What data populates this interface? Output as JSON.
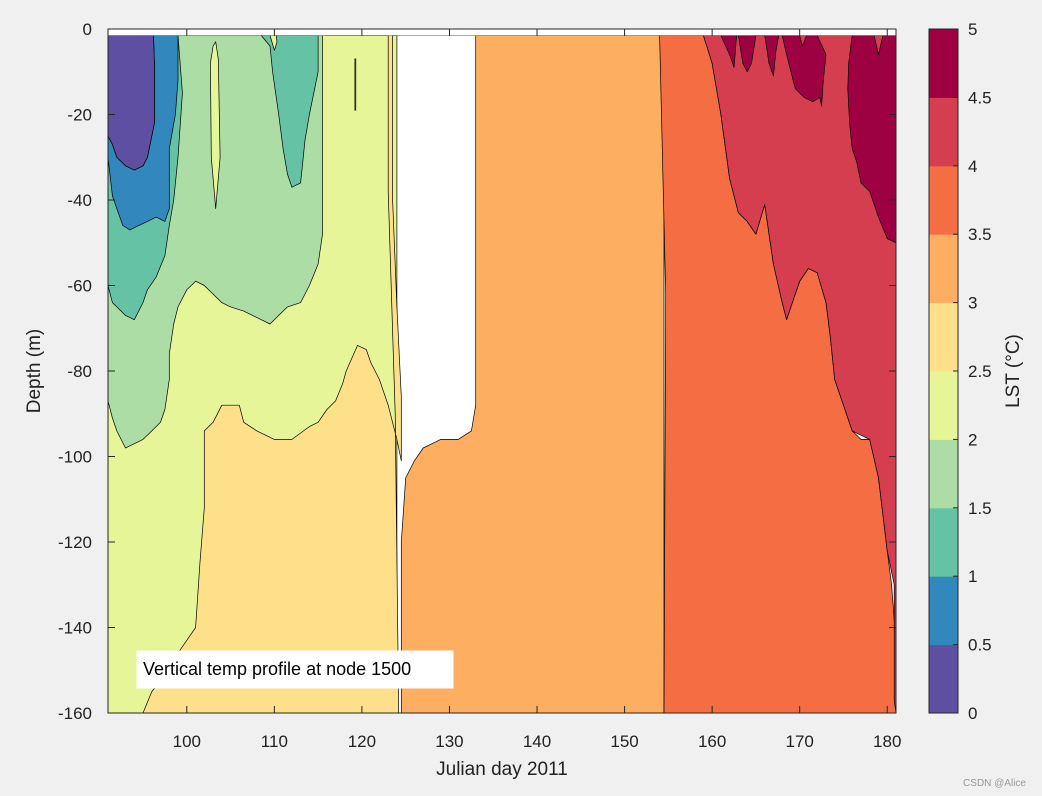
{
  "chart_data": {
    "type": "contourf",
    "title": "",
    "annotation": "Vertical temp profile at node 1500",
    "xlabel": "Julian day 2011",
    "ylabel": "Depth (m)",
    "xlim": [
      91,
      181
    ],
    "ylim": [
      -160,
      0
    ],
    "xticks": [
      100,
      110,
      120,
      130,
      140,
      150,
      160,
      170,
      180
    ],
    "yticks": [
      0,
      -20,
      -40,
      -60,
      -80,
      -100,
      -120,
      -140,
      -160
    ],
    "colorbar": {
      "label": "LST (°C)",
      "levels": [
        0,
        0.5,
        1,
        1.5,
        2,
        2.5,
        3,
        3.5,
        4,
        4.5,
        5
      ],
      "ticks": [
        "0",
        "0.5",
        "1",
        "1.5",
        "2",
        "2.5",
        "3",
        "3.5",
        "4",
        "4.5",
        "5"
      ],
      "colors": [
        "#5e4fa2",
        "#3288bd",
        "#66c2a5",
        "#abdda4",
        "#e6f598",
        "#fee08b",
        "#fdae61",
        "#f46d43",
        "#d53e4f",
        "#9e0142"
      ]
    },
    "surface_gap_depth": -1.5,
    "regions": [
      {
        "level": "2 to 2.5",
        "pts": [
          [
            91,
            -1.5
          ],
          [
            124,
            -1.5
          ],
          [
            124,
            -160
          ],
          [
            91,
            -160
          ]
        ]
      },
      {
        "level": "2.5 to 3",
        "pts": [
          [
            115.8,
            -1.5
          ],
          [
            123,
            -1.5
          ],
          [
            123,
            -38
          ],
          [
            123.8,
            -90
          ],
          [
            124.2,
            -160
          ],
          [
            95,
            -160
          ],
          [
            96,
            -155
          ],
          [
            98,
            -150
          ],
          [
            99,
            -146
          ],
          [
            100,
            -143
          ],
          [
            101,
            -140
          ],
          [
            101.5,
            -125
          ],
          [
            102,
            -112
          ],
          [
            102,
            -94
          ],
          [
            103,
            -92
          ],
          [
            104,
            -88
          ],
          [
            106,
            -88
          ],
          [
            106.5,
            -92
          ],
          [
            108,
            -94
          ],
          [
            110,
            -96
          ],
          [
            112,
            -96
          ],
          [
            114,
            -93
          ],
          [
            115,
            -92
          ],
          [
            116,
            -89
          ],
          [
            117,
            -87
          ],
          [
            117.8,
            -83
          ],
          [
            118.2,
            -80
          ],
          [
            119.5,
            -74
          ],
          [
            120.5,
            -75
          ],
          [
            121,
            -78
          ],
          [
            122,
            -82
          ],
          [
            123,
            -88
          ],
          [
            124,
            -96
          ],
          [
            124.5,
            -101
          ],
          [
            124.5,
            -86
          ],
          [
            124,
            -65
          ],
          [
            123.5,
            -40
          ],
          [
            123.5,
            -1.5
          ]
        ]
      },
      {
        "level": "3 to 3.5",
        "pts": [
          [
            123.5,
            -1.5
          ],
          [
            133,
            -1.5
          ],
          [
            133,
            -35
          ],
          [
            133,
            -88
          ],
          [
            132.5,
            -94
          ],
          [
            131,
            -96
          ],
          [
            129,
            -96
          ],
          [
            128,
            -97
          ],
          [
            127,
            -98
          ],
          [
            126,
            -101
          ],
          [
            125,
            -105
          ],
          [
            124.5,
            -120
          ],
          [
            124.5,
            -160
          ],
          [
            154.5,
            -160
          ],
          [
            154.5,
            -1.5
          ]
        ]
      },
      {
        "level": "3.5 to 4",
        "pts": [
          [
            154,
            -1.5
          ],
          [
            159,
            -1.5
          ],
          [
            160,
            -8
          ],
          [
            161,
            -20
          ],
          [
            162,
            -35
          ],
          [
            163,
            -43
          ],
          [
            164,
            -45
          ],
          [
            165,
            -48
          ],
          [
            166,
            -41
          ],
          [
            167,
            -55
          ],
          [
            168,
            -64
          ],
          [
            168.5,
            -68
          ],
          [
            169,
            -65
          ],
          [
            170,
            -59
          ],
          [
            171,
            -56
          ],
          [
            172,
            -57
          ],
          [
            173,
            -64
          ],
          [
            173.5,
            -72
          ],
          [
            174,
            -82
          ],
          [
            175,
            -88
          ],
          [
            176,
            -94
          ],
          [
            177,
            -96
          ],
          [
            178,
            -96
          ],
          [
            179,
            -105
          ],
          [
            180,
            -122
          ],
          [
            180.5,
            -130
          ],
          [
            181,
            -144
          ],
          [
            181,
            -160
          ],
          [
            154.5,
            -160
          ],
          [
            154.7,
            -62
          ],
          [
            154,
            -1.5
          ]
        ]
      },
      {
        "level": "4 to 4.5",
        "pts": [
          [
            159,
            -1.5
          ],
          [
            181,
            -1.5
          ],
          [
            181,
            -160
          ],
          [
            180.8,
            -157
          ],
          [
            180.8,
            -130
          ],
          [
            180,
            -122
          ],
          [
            179,
            -105
          ],
          [
            178,
            -96
          ],
          [
            176,
            -94
          ],
          [
            175,
            -88
          ],
          [
            174,
            -82
          ],
          [
            173.5,
            -72
          ],
          [
            173,
            -64
          ],
          [
            172,
            -57
          ],
          [
            171,
            -56
          ],
          [
            170,
            -59
          ],
          [
            169,
            -65
          ],
          [
            168.5,
            -68
          ],
          [
            168,
            -64
          ],
          [
            167,
            -55
          ],
          [
            166,
            -41
          ],
          [
            165,
            -48
          ],
          [
            164,
            -45
          ],
          [
            163,
            -43
          ],
          [
            162,
            -35
          ],
          [
            161,
            -20
          ],
          [
            160,
            -8
          ]
        ]
      },
      {
        "level": "4.5 to 5 (A)",
        "pts": [
          [
            161,
            -1.5
          ],
          [
            163,
            -1.5
          ],
          [
            163.5,
            -8
          ],
          [
            164,
            -10
          ],
          [
            164.5,
            -8
          ],
          [
            165,
            -1.5
          ],
          [
            166,
            -1.5
          ],
          [
            166.5,
            -8
          ],
          [
            167,
            -11
          ],
          [
            167.3,
            -5
          ],
          [
            167.6,
            -1.5
          ],
          [
            161,
            -1.5
          ],
          [
            162,
            -6
          ],
          [
            162.5,
            -9
          ],
          [
            162.8,
            -1.5
          ]
        ]
      },
      {
        "level": "4.5 to 5 (B)",
        "pts": [
          [
            168,
            -1.5
          ],
          [
            170,
            -1.5
          ],
          [
            170.3,
            -4
          ],
          [
            170.8,
            -1.5
          ],
          [
            172,
            -1.5
          ],
          [
            173,
            -6
          ],
          [
            172.7,
            -12
          ],
          [
            172.5,
            -18
          ],
          [
            172.3,
            -16
          ],
          [
            171.5,
            -17
          ],
          [
            170.5,
            -16
          ],
          [
            169.5,
            -14
          ],
          [
            169,
            -10
          ],
          [
            168.5,
            -6
          ]
        ]
      },
      {
        "level": "4.5 to 5 (C)",
        "pts": [
          [
            176,
            -1.5
          ],
          [
            178.5,
            -1.5
          ],
          [
            179,
            -6
          ],
          [
            179.5,
            -1.5
          ],
          [
            181,
            -1.5
          ],
          [
            181,
            -50
          ],
          [
            180,
            -49
          ],
          [
            179,
            -44
          ],
          [
            178,
            -38
          ],
          [
            177,
            -36
          ],
          [
            176.5,
            -31
          ],
          [
            176,
            -28
          ],
          [
            175.7,
            -22
          ],
          [
            175.5,
            -14
          ],
          [
            175.6,
            -8
          ]
        ]
      },
      {
        "level": "1.5 to 2",
        "pts": [
          [
            91,
            -1.5
          ],
          [
            115.5,
            -1.5
          ],
          [
            115.5,
            -48
          ],
          [
            115,
            -55
          ],
          [
            114,
            -60
          ],
          [
            113,
            -64
          ],
          [
            111.5,
            -65
          ],
          [
            110.5,
            -67
          ],
          [
            109.5,
            -69
          ],
          [
            108.5,
            -68
          ],
          [
            107.5,
            -67
          ],
          [
            106.5,
            -66
          ],
          [
            105,
            -65
          ],
          [
            104,
            -64
          ],
          [
            103,
            -62
          ],
          [
            102,
            -60
          ],
          [
            101,
            -59
          ],
          [
            100,
            -61
          ],
          [
            99,
            -65
          ],
          [
            98.5,
            -69
          ],
          [
            98,
            -76
          ],
          [
            98,
            -82
          ],
          [
            97.5,
            -89
          ],
          [
            97,
            -92
          ],
          [
            96,
            -94
          ],
          [
            95,
            -96
          ],
          [
            94,
            -97
          ],
          [
            93,
            -98
          ],
          [
            92,
            -94
          ],
          [
            91.5,
            -91
          ],
          [
            91,
            -87
          ]
        ]
      },
      {
        "level": "1 to 1.5",
        "pts": [
          [
            91,
            -1.5
          ],
          [
            99,
            -1.5
          ],
          [
            99.5,
            -15
          ],
          [
            99,
            -30
          ],
          [
            98.5,
            -40
          ],
          [
            98,
            -46
          ],
          [
            97.5,
            -53
          ],
          [
            96.5,
            -58
          ],
          [
            95.5,
            -61
          ],
          [
            95,
            -64
          ],
          [
            94,
            -68
          ],
          [
            93,
            -67
          ],
          [
            92,
            -65
          ],
          [
            91.5,
            -64
          ],
          [
            91,
            -60
          ]
        ]
      },
      {
        "level": "1 to 1.5 (island 1)",
        "pts": [
          [
            108.5,
            -1.5
          ],
          [
            115,
            -1.5
          ],
          [
            115,
            -10
          ],
          [
            114,
            -20
          ],
          [
            113.5,
            -26
          ],
          [
            113,
            -36
          ],
          [
            112,
            -37
          ],
          [
            111.5,
            -34
          ],
          [
            111,
            -28
          ],
          [
            110.5,
            -20
          ],
          [
            109.8,
            -10
          ],
          [
            109.5,
            -4
          ]
        ]
      },
      {
        "level": "0.5 to 1",
        "pts": [
          [
            91,
            -1.5
          ],
          [
            96.2,
            -1.5
          ],
          [
            96.3,
            -8
          ],
          [
            96.3,
            -22
          ],
          [
            96,
            -25
          ],
          [
            95.5,
            -30
          ],
          [
            95,
            -32
          ],
          [
            94,
            -33
          ],
          [
            93,
            -32
          ],
          [
            92,
            -30
          ],
          [
            91.5,
            -27
          ],
          [
            91,
            -25
          ],
          [
            91,
            -30
          ],
          [
            91.5,
            -39
          ],
          [
            92,
            -42
          ],
          [
            92.7,
            -46
          ],
          [
            93.5,
            -47
          ],
          [
            94.5,
            -46
          ],
          [
            95.5,
            -45
          ],
          [
            96.5,
            -44
          ],
          [
            97.5,
            -45
          ],
          [
            98,
            -42
          ],
          [
            98,
            -28
          ],
          [
            98.7,
            -20
          ],
          [
            99,
            -12
          ],
          [
            99,
            -1.5
          ]
        ]
      },
      {
        "level": "0 to 0.5",
        "pts": [
          [
            91,
            -1.5
          ],
          [
            96.2,
            -1.5
          ],
          [
            96.3,
            -8
          ],
          [
            96.3,
            -22
          ],
          [
            96,
            -25
          ],
          [
            95.5,
            -30
          ],
          [
            95,
            -32
          ],
          [
            94,
            -33
          ],
          [
            93,
            -32
          ],
          [
            92,
            -30
          ],
          [
            91.5,
            -27
          ],
          [
            91,
            -25
          ]
        ]
      },
      {
        "level": "2 to 2.5 (island)",
        "pts": [
          [
            103,
            -4
          ],
          [
            103.3,
            -3
          ],
          [
            103.6,
            -7
          ],
          [
            103.8,
            -30
          ],
          [
            103.3,
            -42
          ],
          [
            102.8,
            -30
          ],
          [
            102.7,
            -8
          ]
        ]
      },
      {
        "level": "2 to 2.5 (island 2)",
        "pts": [
          [
            109.5,
            -1.5
          ],
          [
            110.2,
            -1.5
          ],
          [
            110.3,
            -3
          ],
          [
            110,
            -5
          ]
        ]
      },
      {
        "level": "2.5 to 3 (sliver)",
        "pts": [
          [
            119.2,
            -7
          ],
          [
            119.3,
            -7
          ],
          [
            119.3,
            -19
          ],
          [
            119.2,
            -19
          ]
        ]
      }
    ]
  },
  "watermark": "CSDN @Alice"
}
